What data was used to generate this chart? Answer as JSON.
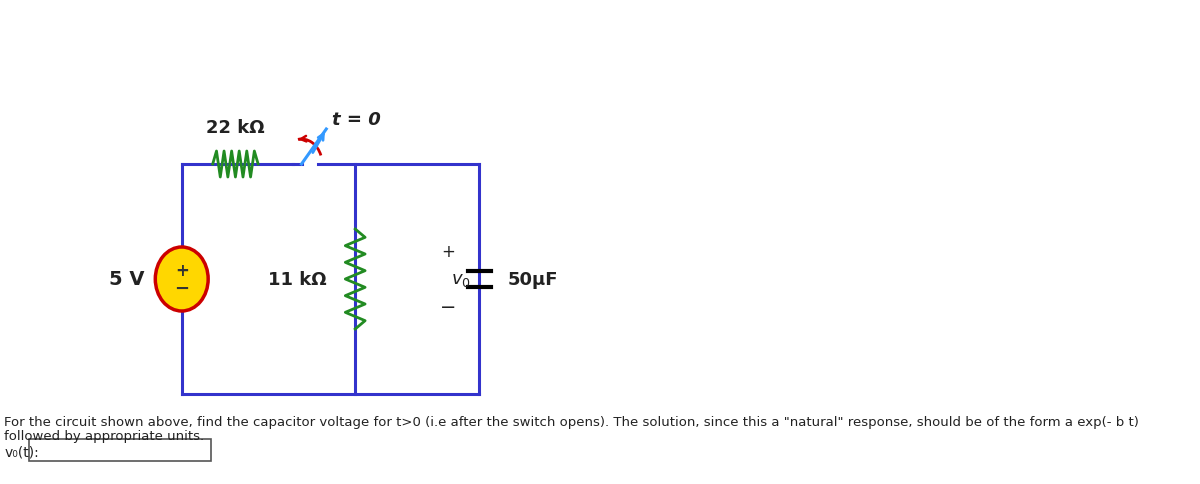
{
  "bg_color": "#ffffff",
  "circuit_color": "#3333cc",
  "resistor_color_22k": "#228B22",
  "resistor_color_11k": "#228B22",
  "switch_color_arc": "#cc0000",
  "switch_color_line": "#3399ff",
  "source_fill": "#FFD700",
  "source_border": "#cc0000",
  "capacitor_color": "#000000",
  "label_22k": "22 kΩ",
  "label_11k": "11 kΩ",
  "label_5v": "5 V",
  "label_t0": "t = 0",
  "label_cap": "50μF",
  "label_v0": "$v_0$",
  "label_plus": "+",
  "label_minus": "−",
  "label_src_plus": "+",
  "label_src_minus": "−",
  "question_text": "For the circuit shown above, find the capacitor voltage for t>0 (i.e after the switch opens). The solution, since this a \"natural\" response, should be of the form a exp(- b t)",
  "question_text2": "followed by appropriate units.",
  "answer_label": "v₀(t):",
  "font_size_labels": 12,
  "font_size_question": 10
}
